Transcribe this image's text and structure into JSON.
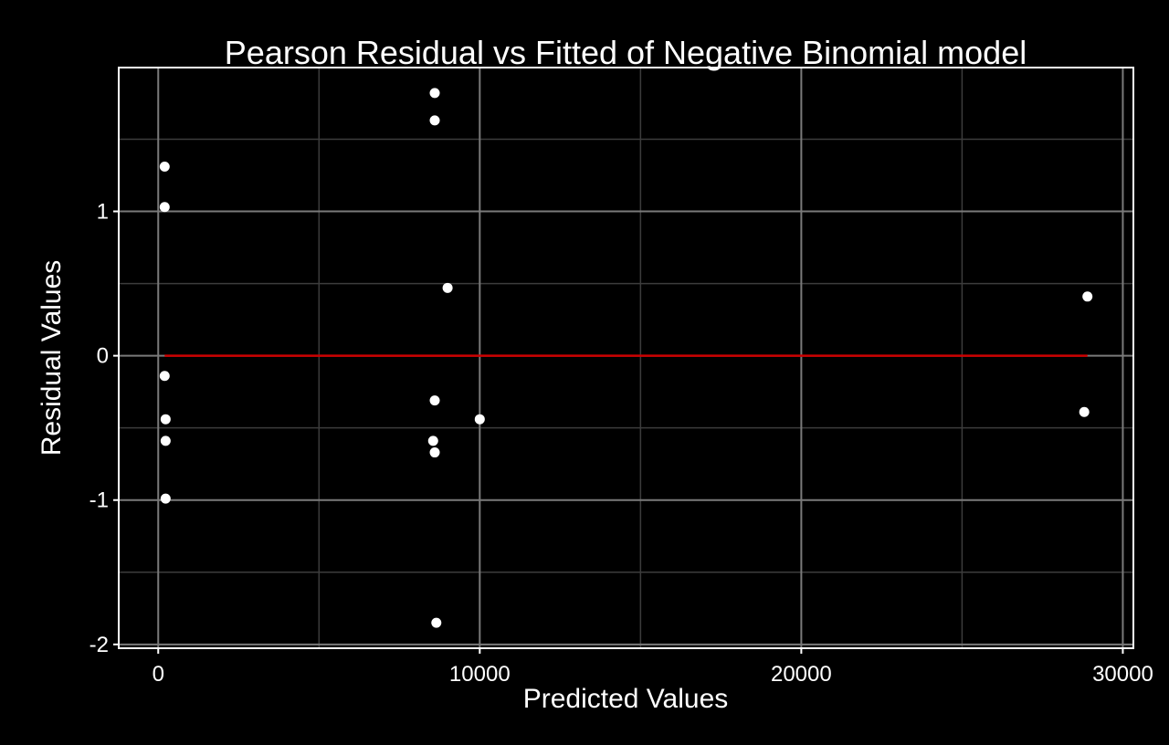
{
  "colors": {
    "background": "#000000",
    "panel_border": "#ffffff",
    "grid_major": "#7a7a7a",
    "grid_minor": "#3c3c3c",
    "text": "#ffffff",
    "points": "#ffffff",
    "reference_line": "#cc0000"
  },
  "chart_data": {
    "type": "scatter",
    "title": "Pearson Residual vs Fitted of Negative Binomial model",
    "xlabel": "Predicted Values",
    "ylabel": "Residual Values",
    "xlim": [
      -1200,
      30300
    ],
    "ylim": [
      -2.02,
      1.99
    ],
    "xticks": [
      0,
      10000,
      20000,
      30000
    ],
    "xtick_labels": [
      "0",
      "10000",
      "20000",
      "30000"
    ],
    "yticks": [
      -2,
      -1,
      0,
      1
    ],
    "ytick_labels": [
      "-2",
      "-1",
      "0",
      "1"
    ],
    "x_minor_ticks": [
      5000,
      15000,
      25000
    ],
    "y_minor_ticks": [
      -1.5,
      -0.5,
      0.5,
      1.5
    ],
    "grid": true,
    "reference_line": {
      "y": 0,
      "x_from": 200,
      "x_to": 28900
    },
    "points": [
      {
        "x": 200,
        "y": 1.31
      },
      {
        "x": 200,
        "y": 1.03
      },
      {
        "x": 200,
        "y": -0.14
      },
      {
        "x": 230,
        "y": -0.44
      },
      {
        "x": 230,
        "y": -0.59
      },
      {
        "x": 230,
        "y": -0.99
      },
      {
        "x": 8600,
        "y": 1.82
      },
      {
        "x": 8600,
        "y": 1.63
      },
      {
        "x": 9000,
        "y": 0.47
      },
      {
        "x": 8600,
        "y": -0.31
      },
      {
        "x": 8550,
        "y": -0.59
      },
      {
        "x": 8600,
        "y": -0.67
      },
      {
        "x": 8650,
        "y": -1.85
      },
      {
        "x": 10000,
        "y": -0.44
      },
      {
        "x": 28900,
        "y": 0.41
      },
      {
        "x": 28800,
        "y": -0.39
      }
    ]
  }
}
